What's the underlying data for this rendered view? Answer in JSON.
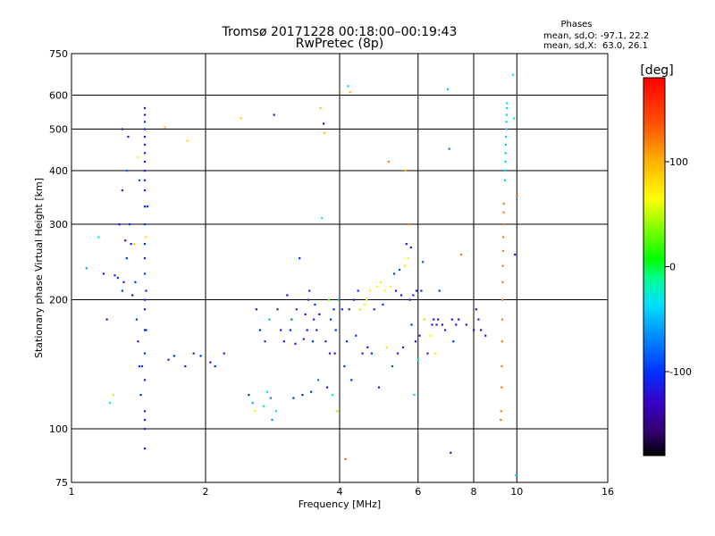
{
  "chart_data": {
    "type": "scatter",
    "title": "Tromsø 20171228 00:18:00–00:19:43",
    "subtitle": "RwPretec (8p)",
    "xlabel": "Frequency [MHz]",
    "ylabel": "Stationary phase Virtual Height [km]",
    "x_scale": "log",
    "y_scale": "log",
    "xlim": [
      1,
      16
    ],
    "ylim": [
      75,
      750
    ],
    "x_ticks": [
      1,
      2,
      4,
      6,
      8,
      10,
      16
    ],
    "y_ticks": [
      75,
      100,
      200,
      300,
      400,
      500,
      600,
      750
    ],
    "grid": true,
    "stats": {
      "heading": "Phases",
      "line_o": "mean, sd,O: -97.1, 22.2",
      "line_x": "mean, sd,X:  63.0, 26.1"
    },
    "colorbar": {
      "label": "[deg]",
      "range": [
        -180,
        180
      ],
      "ticks": [
        100,
        0,
        -100
      ]
    },
    "points": [
      [
        1.08,
        237,
        -60
      ],
      [
        1.15,
        280,
        -30
      ],
      [
        1.18,
        230,
        -110
      ],
      [
        1.2,
        180,
        -120
      ],
      [
        1.22,
        115,
        -20
      ],
      [
        1.24,
        120,
        50
      ],
      [
        1.25,
        228,
        -100
      ],
      [
        1.27,
        225,
        -110
      ],
      [
        1.28,
        300,
        -110
      ],
      [
        1.3,
        210,
        -100
      ],
      [
        1.3,
        360,
        -110
      ],
      [
        1.3,
        500,
        -110
      ],
      [
        1.31,
        220,
        -110
      ],
      [
        1.32,
        275,
        -110
      ],
      [
        1.33,
        250,
        -100
      ],
      [
        1.33,
        400,
        -80
      ],
      [
        1.34,
        480,
        -110
      ],
      [
        1.35,
        300,
        -100
      ],
      [
        1.36,
        270,
        -110
      ],
      [
        1.37,
        205,
        -120
      ],
      [
        1.38,
        270,
        80
      ],
      [
        1.39,
        220,
        -100
      ],
      [
        1.4,
        180,
        -100
      ],
      [
        1.41,
        160,
        -120
      ],
      [
        1.41,
        430,
        70
      ],
      [
        1.42,
        140,
        -110
      ],
      [
        1.42,
        380,
        -90
      ],
      [
        1.43,
        120,
        -100
      ],
      [
        1.44,
        140,
        -100
      ],
      [
        1.46,
        90,
        -120
      ],
      [
        1.46,
        100,
        -100
      ],
      [
        1.46,
        105,
        -110
      ],
      [
        1.46,
        110,
        -110
      ],
      [
        1.46,
        130,
        -110
      ],
      [
        1.46,
        150,
        -100
      ],
      [
        1.46,
        170,
        -110
      ],
      [
        1.46,
        190,
        -120
      ],
      [
        1.46,
        200,
        -110
      ],
      [
        1.46,
        230,
        -100
      ],
      [
        1.46,
        250,
        -110
      ],
      [
        1.46,
        270,
        -100
      ],
      [
        1.46,
        300,
        -100
      ],
      [
        1.46,
        330,
        -110
      ],
      [
        1.46,
        360,
        -110
      ],
      [
        1.46,
        380,
        -110
      ],
      [
        1.46,
        400,
        -110
      ],
      [
        1.46,
        420,
        -110
      ],
      [
        1.46,
        440,
        -120
      ],
      [
        1.46,
        460,
        -110
      ],
      [
        1.46,
        480,
        -110
      ],
      [
        1.46,
        500,
        -110
      ],
      [
        1.46,
        520,
        -100
      ],
      [
        1.46,
        540,
        -120
      ],
      [
        1.46,
        560,
        -110
      ],
      [
        1.47,
        280,
        80
      ],
      [
        1.47,
        210,
        -120
      ],
      [
        1.47,
        170,
        -110
      ],
      [
        1.48,
        330,
        -100
      ],
      [
        1.62,
        505,
        90
      ],
      [
        1.65,
        145,
        -110
      ],
      [
        1.7,
        148,
        -100
      ],
      [
        1.8,
        140,
        -100
      ],
      [
        1.82,
        470,
        80
      ],
      [
        1.88,
        150,
        -110
      ],
      [
        1.95,
        148,
        -100
      ],
      [
        2.05,
        143,
        -110
      ],
      [
        2.1,
        140,
        -100
      ],
      [
        2.2,
        150,
        -110
      ],
      [
        2.4,
        530,
        90
      ],
      [
        2.5,
        120,
        -100
      ],
      [
        2.55,
        115,
        -50
      ],
      [
        2.58,
        110,
        60
      ],
      [
        2.6,
        190,
        -120
      ],
      [
        2.65,
        170,
        -100
      ],
      [
        2.7,
        113,
        -20
      ],
      [
        2.72,
        160,
        -110
      ],
      [
        2.75,
        122,
        -30
      ],
      [
        2.78,
        180,
        -50
      ],
      [
        2.8,
        118,
        -70
      ],
      [
        2.82,
        105,
        -60
      ],
      [
        2.85,
        540,
        -110
      ],
      [
        2.88,
        110,
        -10
      ],
      [
        2.9,
        190,
        -110
      ],
      [
        2.95,
        170,
        -110
      ],
      [
        3.0,
        160,
        -110
      ],
      [
        3.05,
        205,
        -120
      ],
      [
        3.1,
        170,
        -100
      ],
      [
        3.12,
        180,
        -80
      ],
      [
        3.15,
        118,
        -100
      ],
      [
        3.18,
        158,
        -120
      ],
      [
        3.2,
        190,
        -110
      ],
      [
        3.25,
        250,
        -100
      ],
      [
        3.3,
        120,
        -100
      ],
      [
        3.32,
        162,
        -120
      ],
      [
        3.35,
        185,
        -110
      ],
      [
        3.38,
        170,
        -120
      ],
      [
        3.4,
        200,
        -100
      ],
      [
        3.42,
        210,
        -100
      ],
      [
        3.45,
        122,
        -100
      ],
      [
        3.48,
        160,
        -100
      ],
      [
        3.5,
        180,
        -110
      ],
      [
        3.52,
        195,
        -100
      ],
      [
        3.55,
        170,
        -120
      ],
      [
        3.58,
        130,
        -70
      ],
      [
        3.6,
        185,
        -120
      ],
      [
        3.62,
        560,
        90
      ],
      [
        3.65,
        310,
        -30
      ],
      [
        3.68,
        515,
        -120
      ],
      [
        3.7,
        490,
        90
      ],
      [
        3.72,
        160,
        -110
      ],
      [
        3.75,
        125,
        -110
      ],
      [
        3.78,
        200,
        30
      ],
      [
        3.8,
        150,
        -110
      ],
      [
        3.82,
        180,
        -100
      ],
      [
        3.85,
        120,
        -20
      ],
      [
        3.88,
        190,
        -110
      ],
      [
        3.9,
        150,
        -120
      ],
      [
        3.92,
        170,
        -100
      ],
      [
        3.95,
        110,
        40
      ],
      [
        3.98,
        200,
        -60
      ],
      [
        4.0,
        610,
        130
      ],
      [
        4.05,
        190,
        -110
      ],
      [
        4.1,
        140,
        -100
      ],
      [
        4.12,
        85,
        130
      ],
      [
        4.15,
        160,
        -110
      ],
      [
        4.18,
        630,
        -40
      ],
      [
        4.2,
        190,
        -110
      ],
      [
        4.22,
        610,
        100
      ],
      [
        4.25,
        130,
        -100
      ],
      [
        4.3,
        200,
        -110
      ],
      [
        4.35,
        165,
        -100
      ],
      [
        4.4,
        210,
        -110
      ],
      [
        4.45,
        190,
        50
      ],
      [
        4.5,
        150,
        -110
      ],
      [
        4.55,
        195,
        60
      ],
      [
        4.6,
        200,
        60
      ],
      [
        4.62,
        155,
        -110
      ],
      [
        4.68,
        210,
        70
      ],
      [
        4.72,
        150,
        -100
      ],
      [
        4.78,
        190,
        -110
      ],
      [
        4.85,
        215,
        60
      ],
      [
        4.9,
        125,
        -110
      ],
      [
        4.95,
        220,
        60
      ],
      [
        5.0,
        195,
        -100
      ],
      [
        5.05,
        210,
        60
      ],
      [
        5.1,
        155,
        80
      ],
      [
        5.15,
        420,
        120
      ],
      [
        5.2,
        215,
        70
      ],
      [
        5.25,
        140,
        -90
      ],
      [
        5.3,
        230,
        -100
      ],
      [
        5.35,
        210,
        -110
      ],
      [
        5.4,
        150,
        -110
      ],
      [
        5.45,
        235,
        -90
      ],
      [
        5.5,
        205,
        -120
      ],
      [
        5.55,
        155,
        -110
      ],
      [
        5.6,
        240,
        80
      ],
      [
        5.62,
        400,
        100
      ],
      [
        5.65,
        270,
        -110
      ],
      [
        5.7,
        250,
        70
      ],
      [
        5.72,
        300,
        120
      ],
      [
        5.75,
        200,
        -110
      ],
      [
        5.78,
        265,
        -110
      ],
      [
        5.8,
        175,
        -100
      ],
      [
        5.85,
        205,
        -110
      ],
      [
        5.88,
        120,
        -40
      ],
      [
        5.92,
        160,
        -120
      ],
      [
        5.95,
        210,
        -110
      ],
      [
        6.0,
        145,
        -20
      ],
      [
        6.05,
        165,
        -110
      ],
      [
        6.1,
        210,
        -110
      ],
      [
        6.15,
        245,
        -90
      ],
      [
        6.2,
        180,
        40
      ],
      [
        6.3,
        150,
        -110
      ],
      [
        6.4,
        165,
        60
      ],
      [
        6.45,
        175,
        -120
      ],
      [
        6.5,
        180,
        -120
      ],
      [
        6.55,
        150,
        60
      ],
      [
        6.6,
        175,
        -110
      ],
      [
        6.65,
        180,
        -110
      ],
      [
        6.7,
        210,
        -100
      ],
      [
        6.8,
        175,
        -120
      ],
      [
        6.9,
        170,
        -110
      ],
      [
        7.0,
        620,
        -50
      ],
      [
        7.05,
        450,
        -70
      ],
      [
        7.1,
        88,
        -120
      ],
      [
        7.15,
        180,
        -120
      ],
      [
        7.2,
        160,
        -100
      ],
      [
        7.3,
        175,
        -110
      ],
      [
        7.4,
        180,
        -120
      ],
      [
        7.5,
        255,
        120
      ],
      [
        7.7,
        175,
        -120
      ],
      [
        8.0,
        170,
        -120
      ],
      [
        8.1,
        190,
        -120
      ],
      [
        8.2,
        180,
        -110
      ],
      [
        8.3,
        170,
        -120
      ],
      [
        8.5,
        165,
        -120
      ],
      [
        9.2,
        105,
        120
      ],
      [
        9.22,
        110,
        120
      ],
      [
        9.24,
        125,
        120
      ],
      [
        9.25,
        140,
        120
      ],
      [
        9.26,
        160,
        120
      ],
      [
        9.27,
        180,
        120
      ],
      [
        9.28,
        200,
        120
      ],
      [
        9.29,
        220,
        120
      ],
      [
        9.3,
        240,
        120
      ],
      [
        9.31,
        260,
        120
      ],
      [
        9.32,
        280,
        120
      ],
      [
        9.33,
        300,
        120
      ],
      [
        9.34,
        320,
        120
      ],
      [
        9.35,
        335,
        120
      ],
      [
        9.4,
        380,
        -40
      ],
      [
        9.41,
        400,
        -40
      ],
      [
        9.42,
        420,
        -40
      ],
      [
        9.43,
        440,
        -40
      ],
      [
        9.44,
        460,
        -40
      ],
      [
        9.45,
        480,
        -40
      ],
      [
        9.46,
        500,
        -40
      ],
      [
        9.47,
        520,
        -40
      ],
      [
        9.48,
        540,
        -40
      ],
      [
        9.49,
        560,
        -40
      ],
      [
        9.5,
        575,
        -40
      ],
      [
        9.8,
        670,
        -30
      ],
      [
        9.85,
        530,
        -30
      ],
      [
        9.9,
        255,
        -120
      ],
      [
        9.95,
        78,
        -40
      ],
      [
        10.0,
        350,
        130
      ]
    ]
  }
}
